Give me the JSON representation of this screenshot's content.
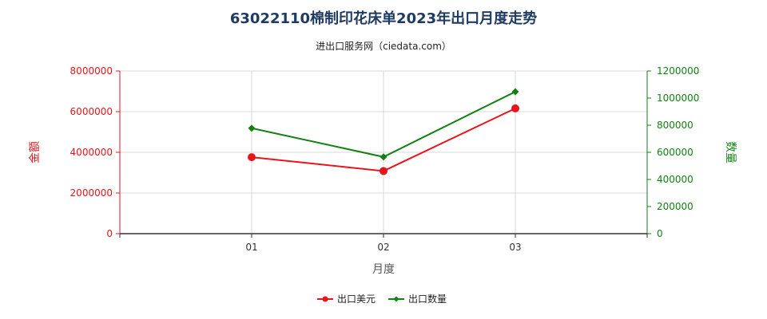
{
  "chart_data": {
    "type": "line",
    "title": "63022110棉制印花床单2023年出口月度走势",
    "subtitle": "进出口服务网（ciedata.com）",
    "xlabel": "月度",
    "ylabel_left": "金额",
    "ylabel_right": "数量",
    "categories": [
      "01",
      "02",
      "03"
    ],
    "y_left": {
      "min": 0,
      "max": 8000000,
      "ticks": [
        "0",
        "2000000",
        "4000000",
        "6000000",
        "8000000"
      ]
    },
    "y_right": {
      "min": 0,
      "max": 1200000,
      "ticks": [
        "0",
        "200000",
        "400000",
        "600000",
        "800000",
        "1000000",
        "1200000"
      ]
    },
    "series": [
      {
        "name": "出口美元",
        "axis": "left",
        "color": "#e8141b",
        "marker": "circle",
        "values": [
          3760000,
          3080000,
          6160000
        ]
      },
      {
        "name": "出口数量",
        "axis": "right",
        "color": "#138013",
        "marker": "diamond",
        "values": [
          778000,
          566000,
          1047000
        ]
      }
    ],
    "grid": true,
    "legend_position": "bottom-center"
  }
}
